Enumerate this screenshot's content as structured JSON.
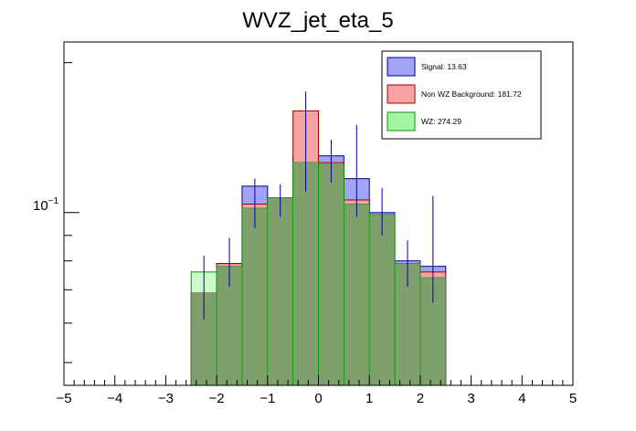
{
  "chart_data": {
    "type": "bar",
    "title": "WVZ_jet_eta_5",
    "xlabel": "",
    "ylabel": "",
    "xlim": [
      -5,
      5
    ],
    "ylog": true,
    "ylim": [
      0.045,
      0.22
    ],
    "x_ticks": [
      -5,
      -4,
      -3,
      -2,
      -1,
      0,
      1,
      2,
      3,
      4,
      5
    ],
    "x_tick_labels": [
      "−5",
      "−4",
      "−3",
      "−2",
      "−1",
      "0",
      "1",
      "2",
      "3",
      "4",
      "5"
    ],
    "y_tick_label": {
      "value": 0.1,
      "label": "10",
      "exponent": "−1"
    },
    "bin_edges": [
      -2.5,
      -2.0,
      -1.5,
      -1.0,
      -0.5,
      0.0,
      0.5,
      1.0,
      1.5,
      2.0,
      2.5
    ],
    "series": [
      {
        "name": "Signal",
        "legend": "Signal: 13.63",
        "fill": "#a3a3f5",
        "line": "#00009a",
        "values": [
          0.069,
          0.079,
          0.113,
          0.107,
          0.13,
          0.13,
          0.117,
          0.1,
          0.08,
          0.078
        ]
      },
      {
        "name": "Non WZ Background",
        "legend": "Non WZ Background: 181.72",
        "fill": "#f5a3a3",
        "line": "#9a0000",
        "values": [
          0.069,
          0.079,
          0.104,
          0.107,
          0.16,
          0.126,
          0.106,
          0.099,
          0.079,
          0.076
        ]
      },
      {
        "name": "WZ",
        "legend": "WZ: 274.29",
        "fill": "#a3f5a3",
        "line": "#009a00",
        "values": [
          0.076,
          0.078,
          0.102,
          0.107,
          0.126,
          0.125,
          0.104,
          0.099,
          0.079,
          0.074
        ]
      }
    ],
    "error_bars": {
      "centers": [
        -2.25,
        -1.75,
        -1.25,
        -0.75,
        -0.25,
        0.25,
        0.75,
        1.25,
        1.75,
        2.25
      ],
      "values": [
        0.069,
        0.079,
        0.104,
        0.107,
        0.126,
        0.126,
        0.108,
        0.099,
        0.079,
        0.076
      ],
      "low": [
        0.061,
        0.071,
        0.093,
        0.098,
        0.11,
        0.115,
        0.098,
        0.09,
        0.071,
        0.066
      ],
      "high": [
        0.082,
        0.089,
        0.117,
        0.114,
        0.175,
        0.14,
        0.15,
        0.112,
        0.088,
        0.108
      ]
    }
  }
}
